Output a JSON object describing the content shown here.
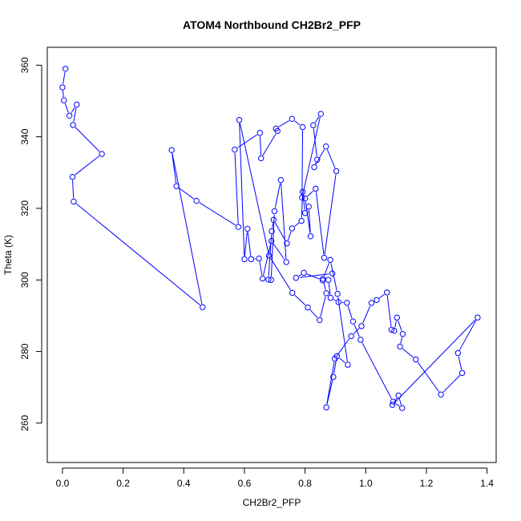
{
  "chart_data": {
    "type": "line",
    "title": "ATOM4 Northbound CH2Br2_PFP",
    "xlabel": "CH2Br2_PFP",
    "ylabel": "Theta (K)",
    "xlim": [
      -0.05,
      1.43
    ],
    "ylim": [
      249,
      365
    ],
    "x_ticks": [
      0.0,
      0.2,
      0.4,
      0.6,
      0.8,
      1.0,
      1.2,
      1.4
    ],
    "x_tick_labels": [
      "0.0",
      "0.2",
      "0.4",
      "0.6",
      "0.8",
      "1.0",
      "1.2",
      "1.4"
    ],
    "y_ticks": [
      260,
      280,
      300,
      320,
      340,
      360
    ],
    "y_tick_labels": [
      "260",
      "280",
      "300",
      "320",
      "340",
      "360"
    ],
    "grid": false,
    "series_color": "#0000ff",
    "series": [
      {
        "x": [
          0.01,
          0.0,
          0.005,
          0.023,
          0.047,
          0.035,
          0.13,
          0.033,
          0.037,
          0.462,
          0.36,
          0.376,
          0.442,
          0.58,
          0.568,
          0.651,
          0.655,
          0.709,
          0.704,
          0.757,
          0.792,
          0.79,
          0.852,
          0.827,
          0.84,
          0.83,
          0.869,
          0.903,
          0.863,
          0.835,
          0.8,
          0.818,
          0.812,
          0.8,
          0.792,
          0.788,
          0.757,
          0.74,
          0.696,
          0.69,
          0.679,
          0.688,
          0.699,
          0.72,
          0.738,
          0.689,
          0.66,
          0.648,
          0.622,
          0.61,
          0.6,
          0.583,
          0.681,
          0.758,
          0.809,
          0.848,
          0.87,
          0.859,
          0.883,
          0.907,
          0.941,
          0.905,
          0.893,
          0.87,
          0.898,
          0.952,
          0.986,
          1.019,
          1.036,
          1.07,
          1.085,
          1.094,
          1.103,
          1.122,
          1.113,
          1.165,
          1.248,
          1.318,
          1.304,
          1.369,
          1.088,
          1.108,
          1.12,
          1.09,
          0.983,
          0.958,
          0.938,
          0.91,
          0.884,
          0.877,
          0.858,
          0.796,
          0.77,
          0.89
        ],
        "y": [
          359.0,
          353.8,
          350.2,
          345.9,
          349.0,
          343.3,
          335.2,
          328.8,
          321.9,
          292.4,
          336.3,
          326.2,
          322.1,
          314.8,
          336.4,
          341.1,
          334.0,
          341.6,
          342.3,
          345.0,
          342.7,
          323.0,
          346.4,
          343.2,
          333.6,
          331.5,
          337.3,
          330.4,
          306.2,
          325.5,
          322.8,
          312.2,
          320.5,
          318.7,
          324.6,
          316.5,
          314.4,
          310.2,
          316.8,
          313.6,
          300.1,
          300.0,
          319.2,
          327.9,
          305.0,
          310.9,
          300.4,
          306.0,
          305.8,
          314.3,
          305.8,
          344.7,
          306.8,
          296.4,
          292.3,
          288.8,
          296.3,
          300.3,
          305.6,
          296.1,
          276.3,
          278.7,
          272.9,
          264.4,
          278.0,
          284.3,
          287.1,
          293.6,
          294.4,
          296.5,
          286.1,
          285.8,
          289.5,
          284.9,
          281.4,
          277.8,
          268.0,
          274.0,
          279.6,
          289.5,
          265.1,
          267.7,
          264.2,
          266.0,
          283.3,
          288.4,
          293.6,
          293.8,
          295.0,
          300.0,
          299.9,
          302.0,
          300.6,
          301.8
        ]
      }
    ]
  }
}
